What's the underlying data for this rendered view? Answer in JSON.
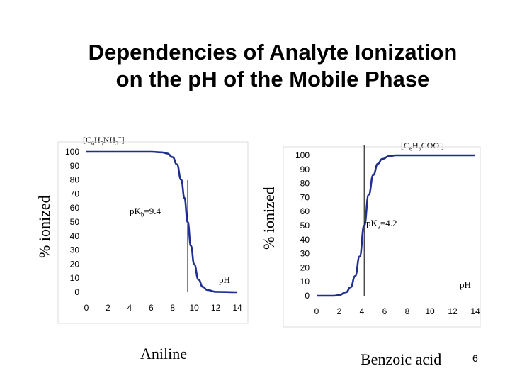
{
  "slide": {
    "title_line1": "Dependencies of Analyte Ionization",
    "title_line2": "on the pH of the Mobile Phase",
    "page_number": "6"
  },
  "chart_data": [
    {
      "type": "line",
      "caption": "Aniline",
      "species_label": "[C6H5NH3+]",
      "ylabel": "% ionized",
      "xlabel": "pH",
      "annotation": "pKb=9.4",
      "marker_x": 9.4,
      "xlim": [
        0,
        14
      ],
      "ylim": [
        0,
        100
      ],
      "xticks": [
        0,
        2,
        4,
        6,
        8,
        10,
        12,
        14
      ],
      "yticks": [
        0,
        10,
        20,
        30,
        40,
        50,
        60,
        70,
        80,
        90,
        100
      ],
      "series": [
        {
          "name": "% ionized",
          "x": [
            0,
            2,
            4,
            6,
            7,
            7.5,
            8,
            8.4,
            8.8,
            9.1,
            9.4,
            9.7,
            10.0,
            10.4,
            10.8,
            11.2,
            12,
            14
          ],
          "y": [
            100,
            100,
            100,
            100,
            99.6,
            98.8,
            96.2,
            91,
            80,
            67,
            50,
            33,
            20,
            9,
            3.8,
            1.6,
            0.3,
            0
          ]
        }
      ]
    },
    {
      "type": "line",
      "caption": "Benzoic acid",
      "species_label": "[C6H5COO-]",
      "ylabel": "% ionized",
      "xlabel": "pH",
      "annotation": "pKa=4.2",
      "marker_x": 4.2,
      "xlim": [
        0,
        14
      ],
      "ylim": [
        0,
        100
      ],
      "xticks": [
        0,
        2,
        4,
        6,
        8,
        10,
        12,
        14
      ],
      "yticks": [
        0,
        10,
        20,
        30,
        40,
        50,
        60,
        70,
        80,
        90,
        100
      ],
      "series": [
        {
          "name": "% ionized",
          "x": [
            0,
            1.5,
            2,
            2.6,
            3.0,
            3.4,
            3.8,
            4.2,
            4.6,
            5.0,
            5.4,
            5.8,
            6.4,
            7,
            8,
            14
          ],
          "y": [
            0,
            0,
            0.5,
            2.5,
            6,
            14,
            28,
            50,
            72,
            86,
            94,
            97.5,
            99.4,
            100,
            100,
            100
          ]
        }
      ]
    }
  ]
}
